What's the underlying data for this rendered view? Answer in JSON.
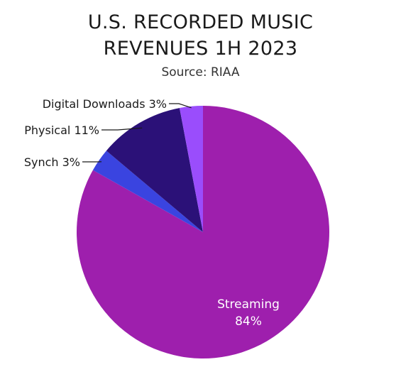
{
  "title_line1": "U.S. RECORDED MUSIC",
  "title_line2": "REVENUES 1H 2023",
  "source": "Source: RIAA",
  "chart_data": {
    "type": "pie",
    "title": "U.S. RECORDED MUSIC REVENUES 1H 2023",
    "subtitle": "Source: RIAA",
    "unit": "%",
    "slices": [
      {
        "label": "Streaming",
        "value": 84,
        "value_text": "84%",
        "color": "#9e1fad"
      },
      {
        "label": "Synch",
        "value": 3,
        "value_text": "Synch 3%",
        "color": "#3a44e0"
      },
      {
        "label": "Physical",
        "value": 11,
        "value_text": "Physical 11%",
        "color": "#2b1178"
      },
      {
        "label": "Digital Downloads",
        "value": 3,
        "value_text": "Digital Downloads 3%",
        "color": "#9a4dfc"
      }
    ]
  }
}
